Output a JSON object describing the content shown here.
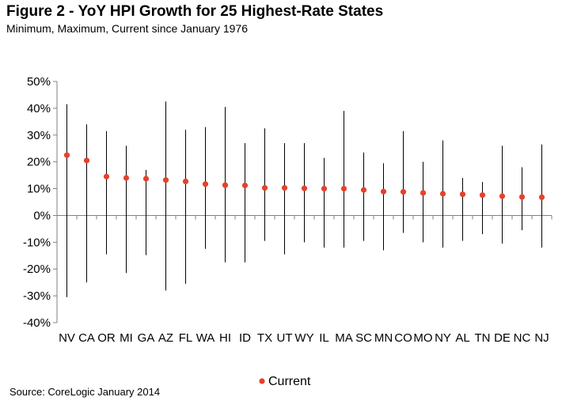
{
  "title": "Figure 2 - YoY HPI Growth for 25 Highest-Rate States",
  "subtitle": "Minimum, Maximum, Current since January 1976",
  "source": "Source: CoreLogic  January 2014",
  "colors": {
    "current": "#e8402a",
    "range": "#000000",
    "axis": "#808080"
  },
  "chart_data": {
    "type": "scatter",
    "title": "Figure 2 - YoY HPI Growth for 25 Highest-Rate States",
    "subtitle": "Minimum, Maximum, Current since January 1976",
    "categories": [
      "NV",
      "CA",
      "OR",
      "MI",
      "GA",
      "AZ",
      "FL",
      "WA",
      "HI",
      "ID",
      "TX",
      "UT",
      "WY",
      "IL",
      "MA",
      "SC",
      "MN",
      "CO",
      "MO",
      "NY",
      "AL",
      "TN",
      "DE",
      "NC",
      "NJ"
    ],
    "series": [
      {
        "name": "Current",
        "values": [
          22.5,
          20.5,
          14.5,
          14,
          13.7,
          13.2,
          12.7,
          11.7,
          11.3,
          11.2,
          10.3,
          10.3,
          10.1,
          10,
          10,
          9.5,
          8.9,
          8.8,
          8.4,
          8.1,
          7.9,
          7.6,
          7.2,
          6.9,
          6.8
        ]
      },
      {
        "name": "Maximum",
        "values": [
          41.5,
          34,
          31.5,
          26,
          17,
          42.5,
          32,
          33,
          40.5,
          27,
          32.5,
          27,
          27,
          21.5,
          39,
          23.5,
          19.5,
          31.5,
          20,
          28,
          14,
          12.5,
          26,
          18,
          26.5
        ]
      },
      {
        "name": "Minimum",
        "values": [
          -30.5,
          -25,
          -14.5,
          -21.5,
          -14.8,
          -28,
          -25.5,
          -12.5,
          -17.5,
          -17.5,
          -9.5,
          -14.5,
          -10,
          -12,
          -12,
          -9.5,
          -13,
          -6.5,
          -10,
          -12,
          -9.5,
          -7,
          -10.5,
          -5.5,
          -12
        ]
      }
    ],
    "ylim": [
      -40,
      50
    ],
    "yticks": [
      -40,
      -30,
      -20,
      -10,
      0,
      10,
      20,
      30,
      40,
      50
    ],
    "ytick_labels": [
      "-40%",
      "-30%",
      "-20%",
      "-10%",
      "0%",
      "10%",
      "20%",
      "30%",
      "40%",
      "50%"
    ],
    "legend": {
      "entries": [
        "Current"
      ],
      "position": "bottom"
    },
    "grid": false
  }
}
